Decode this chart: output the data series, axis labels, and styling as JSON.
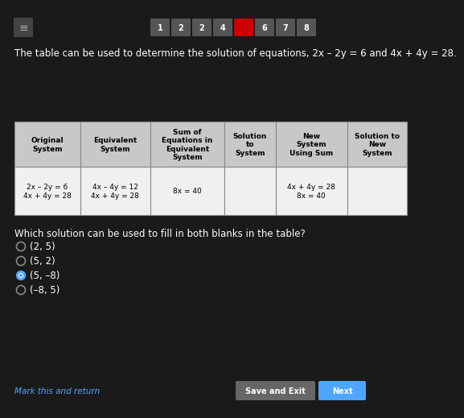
{
  "bg_color": "#1a1a1a",
  "title_text": "The table can be used to determine the solution of equations, 2x – 2y = 6 and 4x + 4y = 28.",
  "title_color": "#ffffff",
  "title_fontsize": 8.5,
  "header_bg": "#c8c8c8",
  "header_text_color": "#000000",
  "cell_bg": "#f0f0f0",
  "cell_text_color": "#000000",
  "headers": [
    "Original\nSystem",
    "Equivalent\nSystem",
    "Sum of\nEquations in\nEquivalent\nSystem",
    "Solution\nto\nSystem",
    "New\nSystem\nUsing Sum",
    "Solution to\nNew\nSystem"
  ],
  "row1": [
    "2x – 2y = 6\n4x + 4y = 28",
    "4x – 4y = 12\n4x + 4y = 28",
    "8x = 40",
    "",
    "4x + 4y = 28\n8x = 40",
    ""
  ],
  "question_text": "Which solution can be used to fill in both blanks in the table?",
  "question_color": "#ffffff",
  "question_fontsize": 8.5,
  "options": [
    "(2, 5)",
    "(5, 2)",
    "(5, –8)",
    "(–8, 5)"
  ],
  "selected_option": 2,
  "option_color": "#ffffff",
  "selected_color": "#4da6ff",
  "nav_numbers": [
    "1",
    "2",
    "2",
    "4",
    "",
    "6",
    "7",
    "8"
  ],
  "nav_colors": [
    "#555555",
    "#555555",
    "#555555",
    "#555555",
    "#cc0000",
    "#555555",
    "#555555",
    "#555555"
  ],
  "btn_save_color": "#666666",
  "btn_next_color": "#4da6ff",
  "bottom_link": "Mark this and return",
  "bottom_link_color": "#4da6ff"
}
